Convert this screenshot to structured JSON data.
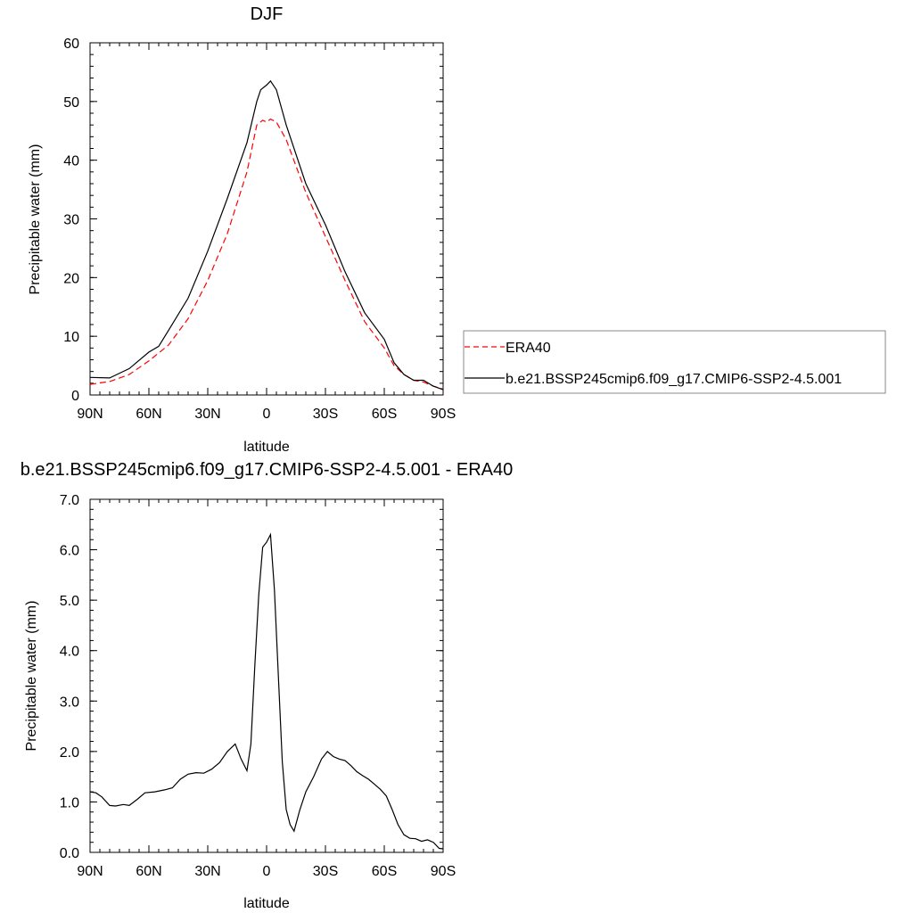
{
  "colors": {
    "era40": "#ff0000",
    "model": "#000000",
    "axes": "#000000"
  },
  "chart_data": [
    {
      "type": "line",
      "title": "DJF",
      "xlabel": "latitude",
      "ylabel": "Precipitable water (mm)",
      "xlim": [
        -90,
        90
      ],
      "ylim": [
        0,
        60
      ],
      "xticks": [
        -90,
        -60,
        -30,
        0,
        30,
        60,
        90
      ],
      "xtick_labels": [
        "90N",
        "60N",
        "30N",
        "0",
        "30S",
        "60S",
        "90S"
      ],
      "yticks": [
        0,
        10,
        20,
        30,
        40,
        50,
        60
      ],
      "ytick_labels": [
        "0",
        "10",
        "20",
        "30",
        "40",
        "50",
        "60"
      ],
      "legend": "right",
      "series": [
        {
          "name": "ERA40",
          "style": "dashed",
          "color": "#ff0000",
          "x": [
            -90,
            -80,
            -70,
            -60,
            -50,
            -40,
            -30,
            -20,
            -10,
            -5,
            -2,
            0,
            2,
            5,
            10,
            20,
            30,
            40,
            50,
            60,
            65,
            70,
            75,
            80,
            85,
            90
          ],
          "y": [
            1.8,
            2.3,
            3.5,
            5.8,
            8.5,
            13.0,
            19.5,
            27.5,
            38.0,
            46.0,
            46.8,
            46.5,
            47.0,
            46.5,
            43.5,
            34.5,
            27.0,
            19.5,
            12.5,
            8.0,
            5.0,
            3.5,
            2.5,
            2.2,
            1.5,
            1.0
          ]
        },
        {
          "name": "b.e21.BSSP245cmip6.f09_g17.CMIP6-SSP2-4.5.001",
          "style": "solid",
          "color": "#000000",
          "x": [
            -90,
            -80,
            -70,
            -60,
            -55,
            -50,
            -40,
            -30,
            -20,
            -10,
            -5,
            -3,
            0,
            2,
            5,
            10,
            20,
            30,
            40,
            50,
            60,
            65,
            70,
            75,
            80,
            85,
            90
          ],
          "y": [
            3.0,
            2.9,
            4.5,
            7.3,
            8.3,
            11.0,
            16.5,
            24.5,
            33.5,
            43.0,
            50.0,
            52.0,
            52.8,
            53.5,
            52.0,
            46.0,
            36.0,
            29.0,
            21.0,
            14.0,
            9.5,
            5.5,
            3.5,
            2.5,
            2.5,
            1.5,
            0.9
          ]
        }
      ]
    },
    {
      "type": "line",
      "title": "b.e21.BSSP245cmip6.f09_g17.CMIP6-SSP2-4.5.001 - ERA40",
      "xlabel": "latitude",
      "ylabel": "Precipitable water (mm)",
      "xlim": [
        -90,
        90
      ],
      "ylim": [
        0,
        7
      ],
      "xticks": [
        -90,
        -60,
        -30,
        0,
        30,
        60,
        90
      ],
      "xtick_labels": [
        "90N",
        "60N",
        "30N",
        "0",
        "30S",
        "60S",
        "90S"
      ],
      "yticks": [
        0,
        1,
        2,
        3,
        4,
        5,
        6,
        7
      ],
      "ytick_labels": [
        "0.0",
        "1.0",
        "2.0",
        "3.0",
        "4.0",
        "5.0",
        "6.0",
        "7.0"
      ],
      "series": [
        {
          "color": "#000000",
          "style": "solid",
          "x": [
            -90,
            -87,
            -84,
            -80,
            -77,
            -73,
            -70,
            -66,
            -62,
            -57,
            -52,
            -48,
            -44,
            -40,
            -36,
            -32,
            -28,
            -24,
            -20,
            -16,
            -13,
            -10,
            -8,
            -6,
            -4,
            -2,
            0,
            2,
            4,
            6,
            8,
            10,
            12,
            14,
            17,
            20,
            24,
            28,
            31,
            34,
            37,
            40,
            43,
            46,
            49,
            52,
            55,
            58,
            61,
            64,
            67,
            70,
            73,
            76,
            79,
            82,
            85,
            88,
            90
          ],
          "y": [
            1.2,
            1.18,
            1.1,
            0.93,
            0.92,
            0.95,
            0.93,
            1.05,
            1.18,
            1.2,
            1.24,
            1.28,
            1.45,
            1.55,
            1.58,
            1.57,
            1.65,
            1.78,
            2.0,
            2.15,
            1.85,
            1.62,
            2.15,
            3.7,
            5.1,
            6.05,
            6.15,
            6.3,
            5.2,
            3.5,
            1.8,
            0.85,
            0.55,
            0.42,
            0.85,
            1.2,
            1.5,
            1.85,
            2.0,
            1.9,
            1.85,
            1.82,
            1.72,
            1.6,
            1.52,
            1.45,
            1.35,
            1.25,
            1.12,
            0.85,
            0.55,
            0.35,
            0.28,
            0.27,
            0.22,
            0.25,
            0.2,
            0.08,
            0.07
          ]
        }
      ]
    }
  ]
}
